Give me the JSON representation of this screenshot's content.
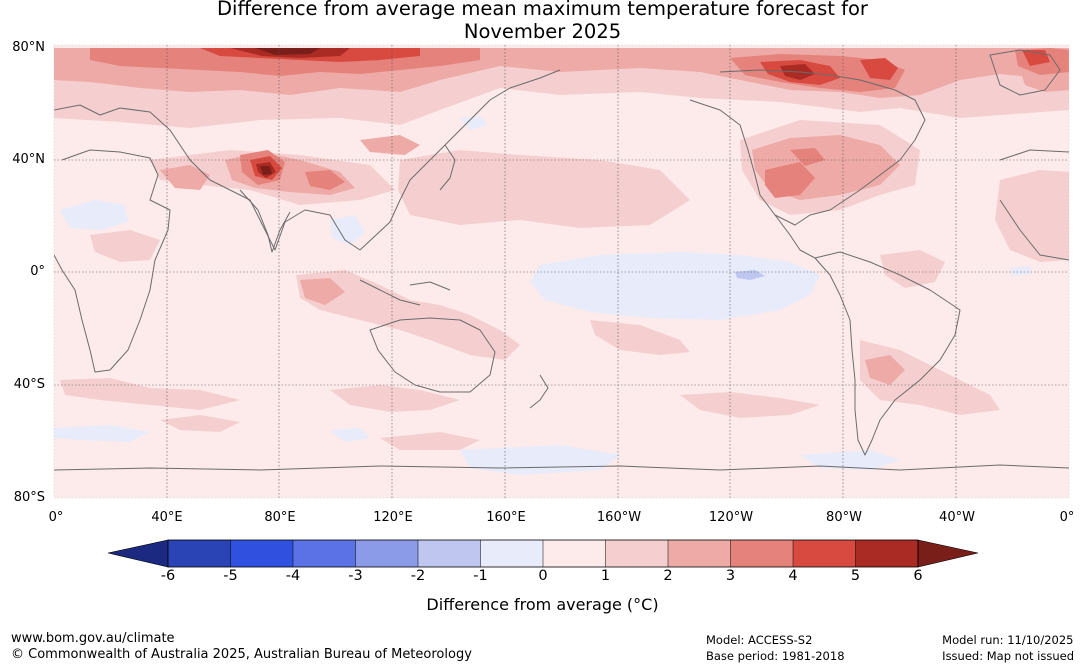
{
  "title_line1": "Difference from average mean maximum temperature forecast for",
  "title_line2": "November 2025",
  "lat_labels": [
    "80°N",
    "40°N",
    "0°",
    "40°S",
    "80°S"
  ],
  "lon_labels": [
    "0°",
    "40°E",
    "80°E",
    "120°E",
    "160°E",
    "160°W",
    "120°W",
    "80°W",
    "40°W",
    "0°"
  ],
  "colorbar": {
    "ticks": [
      "-6",
      "-5",
      "-4",
      "-3",
      "-2",
      "-1",
      "0",
      "1",
      "2",
      "3",
      "4",
      "5",
      "6"
    ],
    "colors": [
      "#1b2a80",
      "#2a43b5",
      "#3050e0",
      "#5a72e6",
      "#8c9be8",
      "#bfc6f0",
      "#e8ebfa",
      "#fcebea",
      "#f5cfcf",
      "#eeaaa6",
      "#e6827c",
      "#d84a40",
      "#aa2b24",
      "#7a1e1a"
    ],
    "label": "Difference from average (°C)"
  },
  "footer": {
    "url": "www.bom.gov.au/climate",
    "copyright": "© Commonwealth of Australia 2025, Australian Bureau of Meteorology",
    "model": "Model: ACCESS-S2",
    "base_period": "Base period: 1981-2018",
    "model_run": "Model run: 11/10/2025",
    "issued": "Issued: Map not issued"
  }
}
